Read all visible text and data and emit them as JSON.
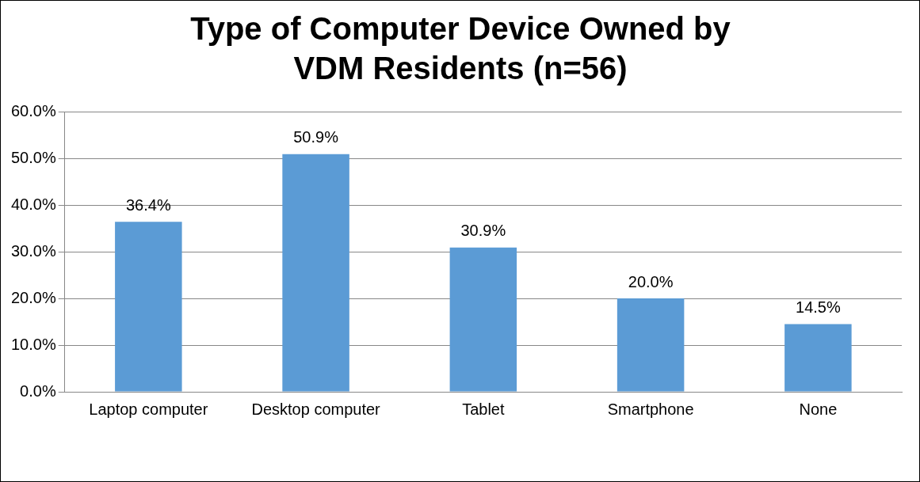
{
  "chart_data": {
    "type": "bar",
    "title": "Type of Computer Device Owned by VDM Residents (n=56)",
    "categories": [
      "Laptop computer",
      "Desktop computer",
      "Tablet",
      "Smartphone",
      "None"
    ],
    "values": [
      36.4,
      50.9,
      30.9,
      20.0,
      14.5
    ],
    "value_labels": [
      "36.4%",
      "50.9%",
      "30.9%",
      "20.0%",
      "14.5%"
    ],
    "color": "#5b9bd5",
    "ylim": [
      0,
      60
    ],
    "yticks": [
      {
        "value": 0,
        "label": "0.0%"
      },
      {
        "value": 10,
        "label": "10.0%"
      },
      {
        "value": 20,
        "label": "20.0%"
      },
      {
        "value": 30,
        "label": "30.0%"
      },
      {
        "value": 40,
        "label": "40.0%"
      },
      {
        "value": 50,
        "label": "50.0%"
      },
      {
        "value": 60,
        "label": "60.0%"
      }
    ],
    "grid": "y",
    "legend": false
  }
}
